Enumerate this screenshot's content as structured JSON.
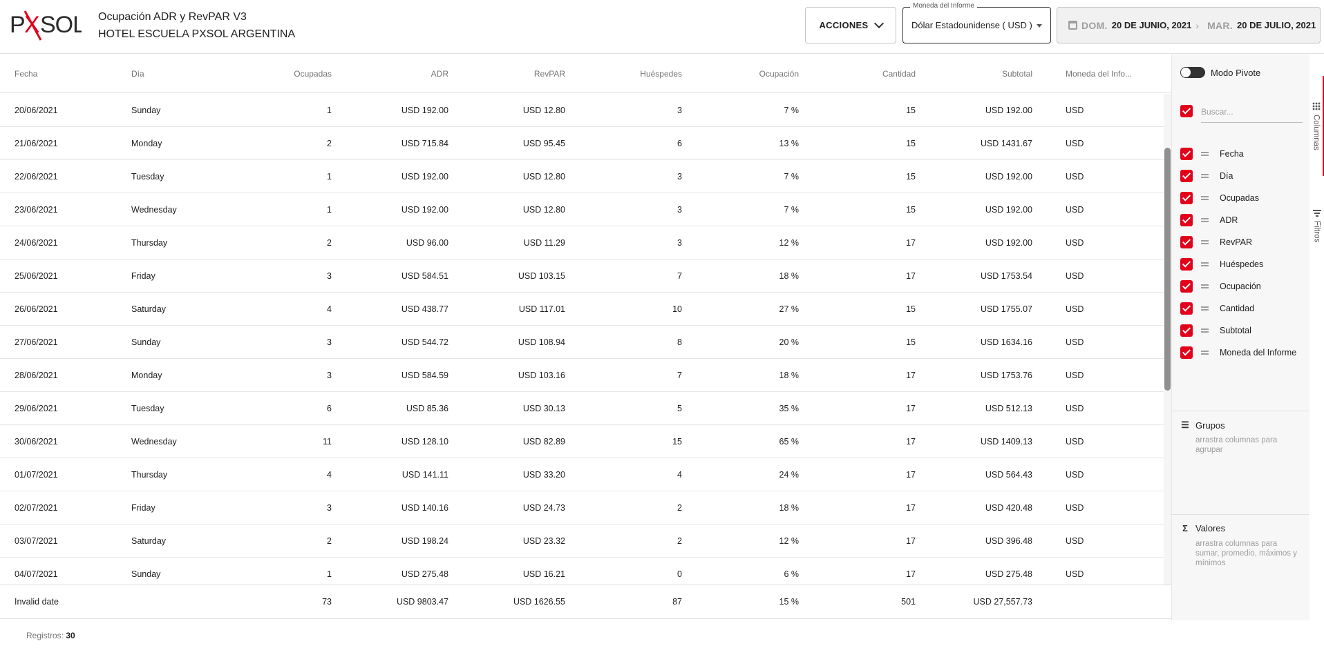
{
  "header": {
    "logo_text": "PXSOL",
    "title": "Ocupación ADR y RevPAR V3",
    "hotel": "HOTEL ESCUELA PXSOL ARGENTINA",
    "acciones_label": "ACCIONES",
    "currency_label": "Moneda del Informe",
    "currency_value": "Dólar Estadounidense ( USD )",
    "date_from_day": "DOM.",
    "date_from": "20 DE JUNIO, 2021",
    "date_to_day": "MAR.",
    "date_to": "20 DE JULIO, 2021",
    "accent_color": "#e3001b"
  },
  "columns": [
    "Fecha",
    "Día",
    "Ocupadas",
    "ADR",
    "RevPAR",
    "Huéspedes",
    "Ocupación",
    "Cantidad",
    "Subtotal",
    "Moneda del Info..."
  ],
  "rows": [
    [
      "20/06/2021",
      "Sunday",
      "1",
      "USD 192.00",
      "USD 12.80",
      "3",
      "7 %",
      "15",
      "USD 192.00",
      "USD"
    ],
    [
      "21/06/2021",
      "Monday",
      "2",
      "USD 715.84",
      "USD 95.45",
      "6",
      "13 %",
      "15",
      "USD 1431.67",
      "USD"
    ],
    [
      "22/06/2021",
      "Tuesday",
      "1",
      "USD 192.00",
      "USD 12.80",
      "3",
      "7 %",
      "15",
      "USD 192.00",
      "USD"
    ],
    [
      "23/06/2021",
      "Wednesday",
      "1",
      "USD 192.00",
      "USD 12.80",
      "3",
      "7 %",
      "15",
      "USD 192.00",
      "USD"
    ],
    [
      "24/06/2021",
      "Thursday",
      "2",
      "USD 96.00",
      "USD 11.29",
      "3",
      "12 %",
      "17",
      "USD 192.00",
      "USD"
    ],
    [
      "25/06/2021",
      "Friday",
      "3",
      "USD 584.51",
      "USD 103.15",
      "7",
      "18 %",
      "17",
      "USD 1753.54",
      "USD"
    ],
    [
      "26/06/2021",
      "Saturday",
      "4",
      "USD 438.77",
      "USD 117.01",
      "10",
      "27 %",
      "15",
      "USD 1755.07",
      "USD"
    ],
    [
      "27/06/2021",
      "Sunday",
      "3",
      "USD 544.72",
      "USD 108.94",
      "8",
      "20 %",
      "15",
      "USD 1634.16",
      "USD"
    ],
    [
      "28/06/2021",
      "Monday",
      "3",
      "USD 584.59",
      "USD 103.16",
      "7",
      "18 %",
      "17",
      "USD 1753.76",
      "USD"
    ],
    [
      "29/06/2021",
      "Tuesday",
      "6",
      "USD 85.36",
      "USD 30.13",
      "5",
      "35 %",
      "17",
      "USD 512.13",
      "USD"
    ],
    [
      "30/06/2021",
      "Wednesday",
      "11",
      "USD 128.10",
      "USD 82.89",
      "15",
      "65 %",
      "17",
      "USD 1409.13",
      "USD"
    ],
    [
      "01/07/2021",
      "Thursday",
      "4",
      "USD 141.11",
      "USD 33.20",
      "4",
      "24 %",
      "17",
      "USD 564.43",
      "USD"
    ],
    [
      "02/07/2021",
      "Friday",
      "3",
      "USD 140.16",
      "USD 24.73",
      "2",
      "18 %",
      "17",
      "USD 420.48",
      "USD"
    ],
    [
      "03/07/2021",
      "Saturday",
      "2",
      "USD 198.24",
      "USD 23.32",
      "2",
      "12 %",
      "17",
      "USD 396.48",
      "USD"
    ],
    [
      "04/07/2021",
      "Sunday",
      "1",
      "USD 275.48",
      "USD 16.21",
      "0",
      "6 %",
      "17",
      "USD 275.48",
      "USD"
    ]
  ],
  "totals": [
    "Invalid date",
    "",
    "73",
    "USD 9803.47",
    "USD 1626.55",
    "87",
    "15 %",
    "501",
    "USD 27,557.73",
    ""
  ],
  "status": {
    "label": "Registros:",
    "count": "30"
  },
  "side_panel": {
    "pivot_label": "Modo Pivote",
    "search_placeholder": "Buscar...",
    "columns": [
      "Fecha",
      "Día",
      "Ocupadas",
      "ADR",
      "RevPAR",
      "Huéspedes",
      "Ocupación",
      "Cantidad",
      "Subtotal",
      "Moneda del Informe"
    ],
    "groups_title": "Grupos",
    "groups_hint": "arrastra columnas para agrupar",
    "values_title": "Valores",
    "values_hint": "arrastra columnas para sumar, promedio, máximos y mínimos",
    "tab_columns": "Columnas",
    "tab_filters": "Filtros"
  }
}
